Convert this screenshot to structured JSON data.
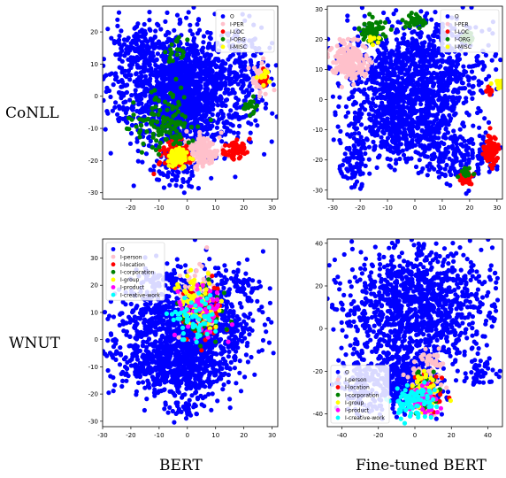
{
  "row_labels": [
    "CoNLL",
    "WNUT"
  ],
  "col_labels": [
    "BERT",
    "Fine-tuned BERT"
  ],
  "chart_data": [
    {
      "type": "scatter",
      "row": "CoNLL",
      "column": "BERT",
      "xlim": [
        -30,
        32
      ],
      "ylim": [
        -32,
        28
      ],
      "xticks": [
        -20,
        -10,
        0,
        10,
        20,
        30
      ],
      "yticks": [
        -30,
        -20,
        -10,
        0,
        10,
        20
      ],
      "legend": "top-right",
      "series": [
        {
          "name": "O",
          "color": "#0000ff"
        },
        {
          "name": "I-PER",
          "color": "#ffc0cb"
        },
        {
          "name": "I-LOC",
          "color": "#ff0000"
        },
        {
          "name": "I-ORG",
          "color": "#008000"
        },
        {
          "name": "I-MISC",
          "color": "#ffff00"
        }
      ]
    },
    {
      "type": "scatter",
      "row": "CoNLL",
      "column": "Fine-tuned BERT",
      "xlim": [
        -32,
        32
      ],
      "ylim": [
        -33,
        31
      ],
      "xticks": [
        -30,
        -20,
        -10,
        0,
        10,
        20,
        30
      ],
      "yticks": [
        -30,
        -20,
        -10,
        0,
        10,
        20,
        30
      ],
      "legend": "top-right",
      "series": [
        {
          "name": "O",
          "color": "#0000ff"
        },
        {
          "name": "I-PER",
          "color": "#ffc0cb"
        },
        {
          "name": "I-LOC",
          "color": "#ff0000"
        },
        {
          "name": "I-ORG",
          "color": "#008000"
        },
        {
          "name": "I-MISC",
          "color": "#ffff00"
        }
      ]
    },
    {
      "type": "scatter",
      "row": "WNUT",
      "column": "BERT",
      "xlim": [
        -30,
        32
      ],
      "ylim": [
        -32,
        37
      ],
      "xticks": [
        -30,
        -20,
        -10,
        0,
        10,
        20,
        30
      ],
      "yticks": [
        -30,
        -20,
        -10,
        0,
        10,
        20,
        30
      ],
      "legend": "top-left",
      "series": [
        {
          "name": "O",
          "color": "#0000ff"
        },
        {
          "name": "I-person",
          "color": "#ffc0cb"
        },
        {
          "name": "I-location",
          "color": "#ff0000"
        },
        {
          "name": "I-corporation",
          "color": "#008000"
        },
        {
          "name": "I-group",
          "color": "#ffff00"
        },
        {
          "name": "I-product",
          "color": "#ff00ff"
        },
        {
          "name": "I-creative-work",
          "color": "#00ffff"
        }
      ]
    },
    {
      "type": "scatter",
      "row": "WNUT",
      "column": "Fine-tuned BERT",
      "xlim": [
        -48,
        48
      ],
      "ylim": [
        -46,
        42
      ],
      "xticks": [
        -40,
        -20,
        0,
        20,
        40
      ],
      "yticks": [
        -40,
        -20,
        0,
        20,
        40
      ],
      "legend": "bottom-left",
      "series": [
        {
          "name": "O",
          "color": "#0000ff"
        },
        {
          "name": "I-person",
          "color": "#ffc0cb"
        },
        {
          "name": "I-location",
          "color": "#ff0000"
        },
        {
          "name": "I-corporation",
          "color": "#008000"
        },
        {
          "name": "I-group",
          "color": "#ffff00"
        },
        {
          "name": "I-product",
          "color": "#ff00ff"
        },
        {
          "name": "I-creative-work",
          "color": "#00ffff"
        }
      ]
    }
  ]
}
